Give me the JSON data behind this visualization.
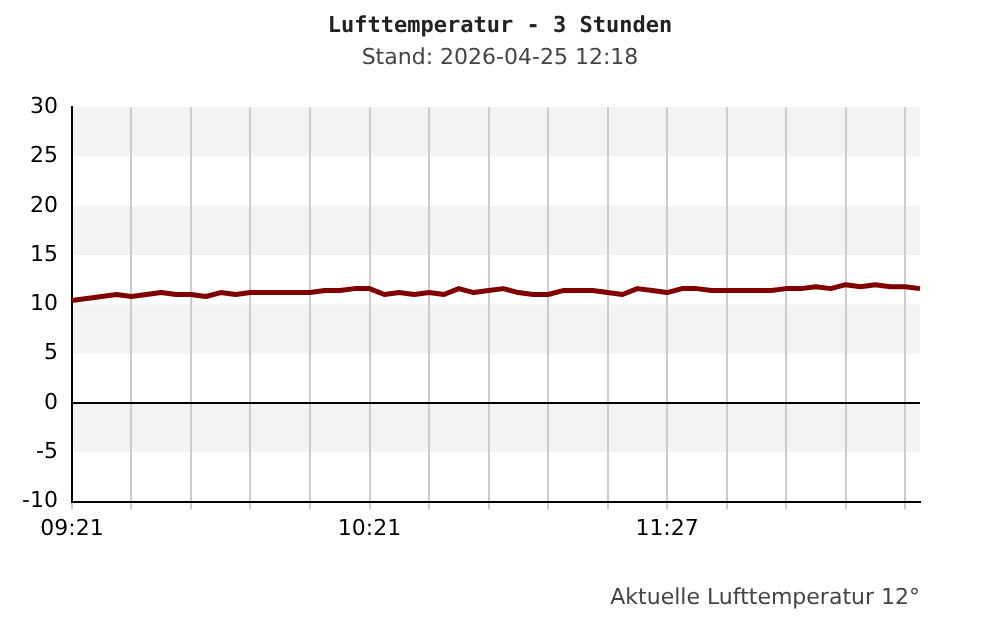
{
  "chart_data": {
    "type": "line",
    "title": "Lufttemperatur - 3 Stunden",
    "subtitle": "Stand: 2026-04-25 12:18",
    "annotations": [
      "Aktuelle Lufttemperatur 12°"
    ],
    "categories": [
      "09:21",
      null,
      null,
      null,
      null,
      null,
      null,
      null,
      null,
      null,
      null,
      null,
      null,
      null,
      null,
      null,
      null,
      null,
      null,
      null,
      "10:21",
      null,
      null,
      null,
      null,
      null,
      null,
      null,
      null,
      null,
      null,
      null,
      null,
      null,
      null,
      null,
      null,
      null,
      null,
      null,
      "11:27",
      null,
      null,
      null,
      null,
      null,
      null,
      null,
      null,
      null,
      null,
      null,
      null,
      null,
      null,
      null,
      null,
      null
    ],
    "series": [
      {
        "color": "#800000",
        "values": [
          10.4,
          10.6,
          10.8,
          11.0,
          10.8,
          11.0,
          11.2,
          11.0,
          11.0,
          10.8,
          11.2,
          11.0,
          11.2,
          11.2,
          11.2,
          11.2,
          11.2,
          11.4,
          11.4,
          11.6,
          11.6,
          11.0,
          11.2,
          11.0,
          11.2,
          11.0,
          11.6,
          11.2,
          11.4,
          11.6,
          11.2,
          11.0,
          11.0,
          11.4,
          11.4,
          11.4,
          11.2,
          11.0,
          11.6,
          11.4,
          11.2,
          11.6,
          11.6,
          11.4,
          11.4,
          11.4,
          11.4,
          11.4,
          11.6,
          11.6,
          11.8,
          11.6,
          12.0,
          11.8,
          12.0,
          11.8,
          11.8,
          11.6
        ]
      }
    ],
    "ylim": [
      -10,
      30
    ],
    "yticks": [
      -10,
      -5,
      0,
      5,
      10,
      15,
      20,
      25,
      30
    ],
    "grid": "x",
    "legend": false,
    "marker": "none",
    "line_style": "solid",
    "ref_lines": [
      {
        "axis": "y",
        "value": 0,
        "color": "#000000"
      }
    ]
  }
}
